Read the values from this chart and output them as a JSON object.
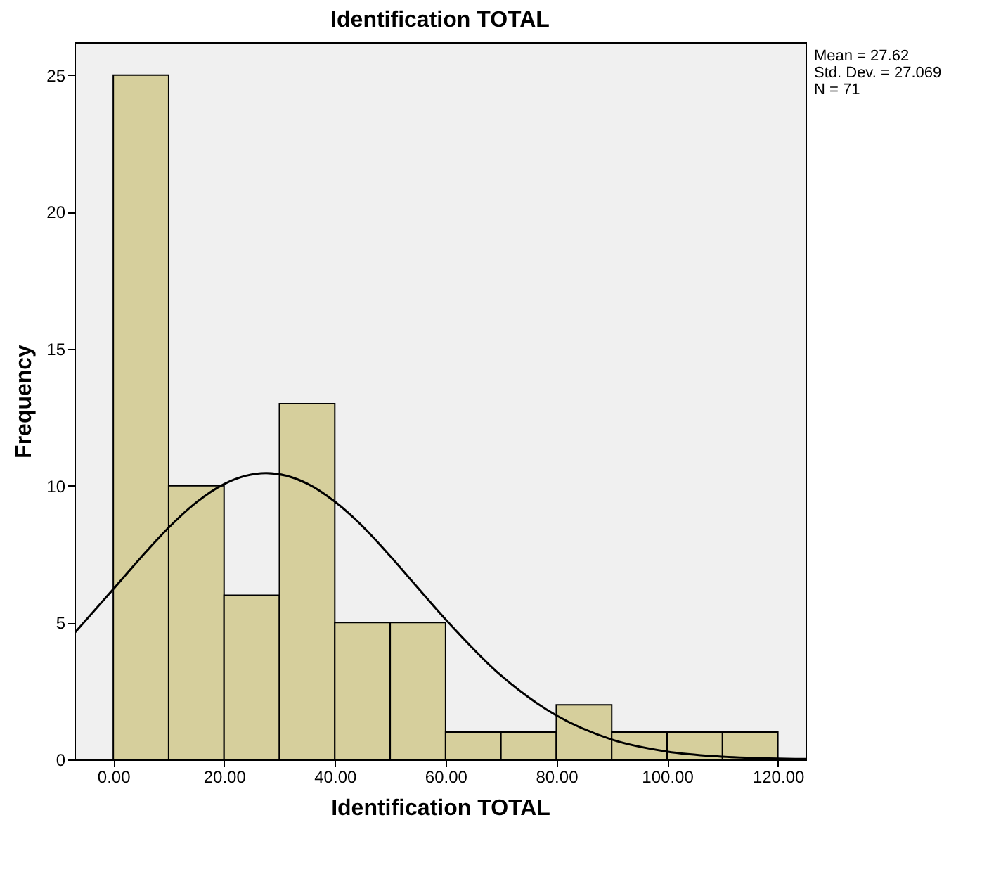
{
  "chart_data": {
    "type": "histogram",
    "title": "Identification TOTAL",
    "xlabel": "Identification TOTAL",
    "ylabel": "Frequency",
    "bins": [
      0,
      10,
      20,
      30,
      40,
      50,
      60,
      70,
      80,
      90,
      100,
      110,
      120
    ],
    "values": [
      25,
      10,
      6,
      13,
      5,
      5,
      1,
      1,
      2,
      1,
      1,
      1
    ],
    "color": "#d6cf9c",
    "series": [
      {
        "type": "line",
        "color": "#000000",
        "x": [
          -7,
          0,
          5,
          10,
          15,
          20,
          27.62,
          35,
          40,
          45,
          50,
          55,
          60,
          70,
          80,
          90,
          100,
          110,
          120,
          125
        ],
        "values": [
          4.62,
          6.22,
          7.38,
          8.47,
          9.39,
          10.06,
          10.46,
          10.08,
          9.42,
          8.52,
          7.43,
          6.27,
          5.12,
          3.07,
          1.61,
          0.73,
          0.29,
          0.1,
          0.03,
          0.02
        ]
      }
    ],
    "xlim": [
      -7,
      125
    ],
    "ylim": [
      0,
      26.2
    ],
    "xticks": [
      {
        "value": 0,
        "label": "0.00"
      },
      {
        "value": 20,
        "label": "20.00"
      },
      {
        "value": 40,
        "label": "40.00"
      },
      {
        "value": 60,
        "label": "60.00"
      },
      {
        "value": 80,
        "label": "80.00"
      },
      {
        "value": 100,
        "label": "100.00"
      },
      {
        "value": 120,
        "label": "120.00"
      }
    ],
    "yticks": [
      0,
      5,
      10,
      15,
      20,
      25
    ],
    "grid": false,
    "annotations": [
      "Mean = 27.62",
      "Std. Dev. = 27.069",
      "N = 71"
    ]
  }
}
